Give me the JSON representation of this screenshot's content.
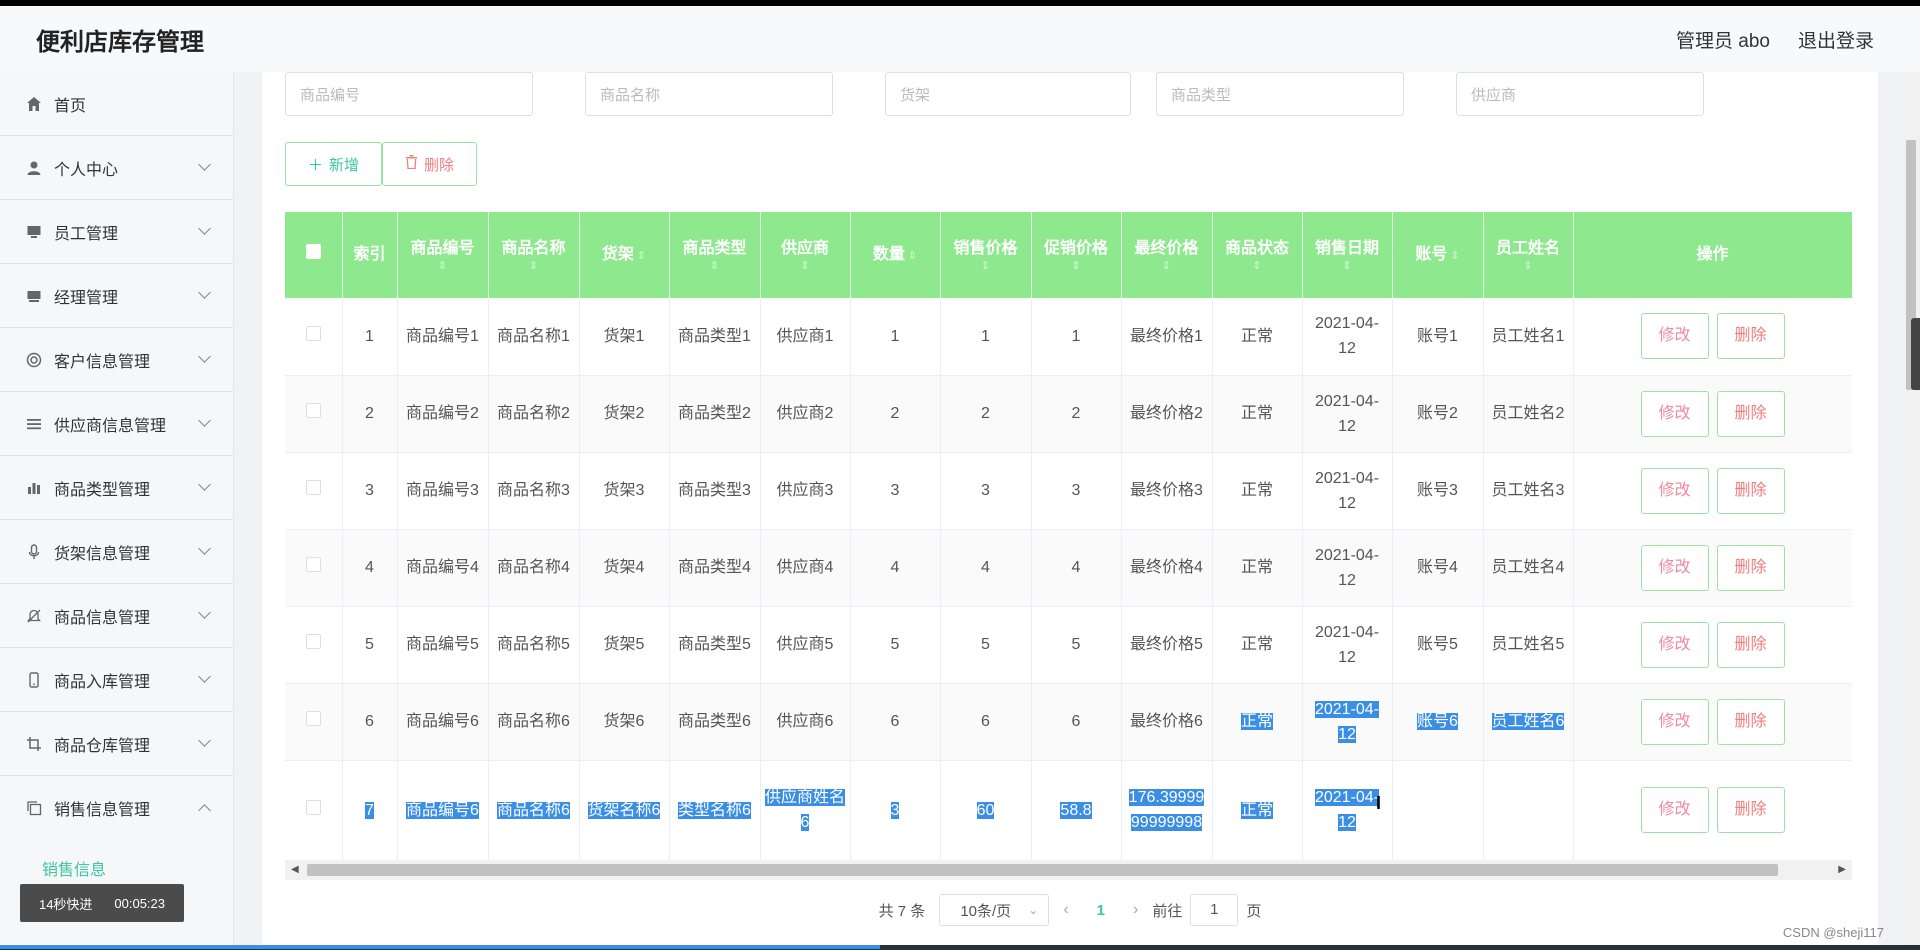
{
  "app": {
    "title": "便利店库存管理"
  },
  "header": {
    "admin_label": "管理员 abo",
    "logout_label": "退出登录"
  },
  "sidebar": {
    "items": [
      {
        "label": "首页",
        "icon": "home-icon",
        "expandable": false
      },
      {
        "label": "个人中心",
        "icon": "user-icon",
        "expandable": true
      },
      {
        "label": "员工管理",
        "icon": "monitor-icon",
        "expandable": true
      },
      {
        "label": "经理管理",
        "icon": "monitor-icon",
        "expandable": true
      },
      {
        "label": "客户信息管理",
        "icon": "lifebuoy-icon",
        "expandable": true
      },
      {
        "label": "供应商信息管理",
        "icon": "list-icon",
        "expandable": true
      },
      {
        "label": "商品类型管理",
        "icon": "bar-chart-icon",
        "expandable": true
      },
      {
        "label": "货架信息管理",
        "icon": "microphone-icon",
        "expandable": true
      },
      {
        "label": "商品信息管理",
        "icon": "bell-off-icon",
        "expandable": true
      },
      {
        "label": "商品入库管理",
        "icon": "phone-icon",
        "expandable": true
      },
      {
        "label": "商品仓库管理",
        "icon": "crop-icon",
        "expandable": true
      },
      {
        "label": "销售信息管理",
        "icon": "copy-icon",
        "expandable": true,
        "expanded": true
      }
    ],
    "active_sub": "销售信息"
  },
  "video_badge": {
    "speed": "14秒快进",
    "time": "00:05:23"
  },
  "search": {
    "code_placeholder": "商品编号",
    "name_placeholder": "商品名称",
    "shelf_placeholder": "货架",
    "type_placeholder": "商品类型",
    "supplier_placeholder": "供应商"
  },
  "toolbar": {
    "add_label": "新增",
    "delete_label": "删除"
  },
  "table": {
    "headers": {
      "index": "索引",
      "code": "商品编号",
      "name": "商品名称",
      "shelf": "货架",
      "type": "商品类型",
      "supplier": "供应商",
      "qty": "数量",
      "price": "销售价格",
      "promo": "促销价格",
      "final": "最终价格",
      "status": "商品状态",
      "date": "销售日期",
      "account": "账号",
      "staff": "员工姓名",
      "ops": "操作"
    },
    "sort_glyph": "⇕",
    "edit_label": "修改",
    "remove_label": "删除",
    "rows": [
      {
        "index": "1",
        "code": "商品编号1",
        "name": "商品名称1",
        "shelf": "货架1",
        "type": "商品类型1",
        "supplier": "供应商1",
        "qty": "1",
        "price": "1",
        "promo": "1",
        "final": "最终价格1",
        "status": "正常",
        "date": "2021-04-12",
        "account": "账号1",
        "staff": "员工姓名1"
      },
      {
        "index": "2",
        "code": "商品编号2",
        "name": "商品名称2",
        "shelf": "货架2",
        "type": "商品类型2",
        "supplier": "供应商2",
        "qty": "2",
        "price": "2",
        "promo": "2",
        "final": "最终价格2",
        "status": "正常",
        "date": "2021-04-12",
        "account": "账号2",
        "staff": "员工姓名2"
      },
      {
        "index": "3",
        "code": "商品编号3",
        "name": "商品名称3",
        "shelf": "货架3",
        "type": "商品类型3",
        "supplier": "供应商3",
        "qty": "3",
        "price": "3",
        "promo": "3",
        "final": "最终价格3",
        "status": "正常",
        "date": "2021-04-12",
        "account": "账号3",
        "staff": "员工姓名3"
      },
      {
        "index": "4",
        "code": "商品编号4",
        "name": "商品名称4",
        "shelf": "货架4",
        "type": "商品类型4",
        "supplier": "供应商4",
        "qty": "4",
        "price": "4",
        "promo": "4",
        "final": "最终价格4",
        "status": "正常",
        "date": "2021-04-12",
        "account": "账号4",
        "staff": "员工姓名4"
      },
      {
        "index": "5",
        "code": "商品编号5",
        "name": "商品名称5",
        "shelf": "货架5",
        "type": "商品类型5",
        "supplier": "供应商5",
        "qty": "5",
        "price": "5",
        "promo": "5",
        "final": "最终价格5",
        "status": "正常",
        "date": "2021-04-12",
        "account": "账号5",
        "staff": "员工姓名5"
      },
      {
        "index": "6",
        "code": "商品编号6",
        "name": "商品名称6",
        "shelf": "货架6",
        "type": "商品类型6",
        "supplier": "供应商6",
        "qty": "6",
        "price": "6",
        "promo": "6",
        "final": "最终价格6",
        "status": "正常",
        "date": "2021-04-12",
        "account": "账号6",
        "staff": "员工姓名6"
      },
      {
        "index": "7",
        "code": "商品编号6",
        "name": "商品名称6",
        "shelf": "货架名称6",
        "type": "类型名称6",
        "supplier": "供应商姓名6",
        "qty": "3",
        "price": "60",
        "promo": "58.8",
        "final": "176.3999999999998",
        "status": "正常",
        "date": "2021-04-12",
        "account": "",
        "staff": ""
      }
    ]
  },
  "pagination": {
    "total": "共 7 条",
    "page_size": "10条/页",
    "current": "1",
    "goto_label": "前往",
    "goto_value": "1",
    "page_unit": "页"
  },
  "watermark": "CSDN @sheji117",
  "colors": {
    "accent": "#3cc7a1",
    "header_green": "#8ee88e",
    "selection": "#3a8ee6",
    "danger": "#f07e7e"
  }
}
